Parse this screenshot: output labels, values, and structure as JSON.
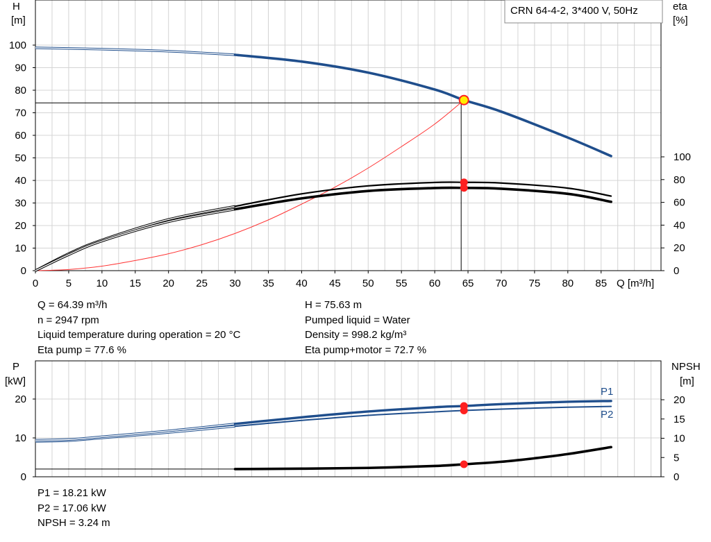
{
  "chart_data": [
    {
      "type": "line",
      "title": "CRN 64-4-2, 3*400 V, 50Hz",
      "xlabel": "Q [m³/h]",
      "ylabel_left": [
        "H",
        "[m]"
      ],
      "ylabel_right": [
        "eta",
        "[%]"
      ],
      "xlim": [
        0,
        94
      ],
      "ylim_left": [
        0,
        120
      ],
      "ylim_right": [
        0,
        100
      ],
      "x_ticks": [
        0,
        5,
        10,
        15,
        20,
        25,
        30,
        35,
        40,
        45,
        50,
        55,
        60,
        65,
        70,
        75,
        80,
        85
      ],
      "y_ticks_left": [
        0,
        10,
        20,
        30,
        40,
        50,
        60,
        70,
        80,
        90,
        100
      ],
      "y_ticks_right": [
        0,
        20,
        40,
        60,
        80,
        100
      ],
      "grid": true,
      "series": [
        {
          "key": "H",
          "axis": "left",
          "color": "#1f4e8c",
          "x": [
            0,
            10,
            20,
            30,
            40,
            50,
            60,
            64.39,
            70,
            80,
            86.5
          ],
          "y": [
            98.8,
            98.2,
            97.3,
            95.7,
            92.7,
            87.8,
            80.3,
            75.63,
            70.5,
            59.0,
            50.8
          ]
        },
        {
          "key": "eta_pump",
          "axis": "right",
          "x": [
            0,
            5,
            10,
            20,
            30,
            40,
            50,
            60,
            64.39,
            70,
            80,
            86.5
          ],
          "y": [
            0,
            15,
            27,
            45,
            56.5,
            67.5,
            74.5,
            77.5,
            77.6,
            77,
            72.5,
            65.5
          ]
        },
        {
          "key": "eta_total",
          "axis": "right",
          "x": [
            0,
            5,
            10,
            20,
            30,
            40,
            50,
            60,
            64.39,
            70,
            80,
            86.5
          ],
          "y": [
            0,
            14,
            26,
            43,
            54,
            63.5,
            70,
            72.6,
            72.7,
            72,
            67.5,
            60.5
          ]
        },
        {
          "key": "system",
          "axis": "left",
          "color": "#ff3333",
          "x": [
            0,
            5,
            10,
            15,
            20,
            25,
            30,
            35,
            40,
            45,
            50,
            55,
            60,
            64.39
          ],
          "y": [
            0,
            0.5,
            2,
            4.5,
            7.5,
            11.5,
            16.5,
            22.5,
            29.5,
            37,
            45.5,
            55,
            65,
            75.63
          ]
        }
      ],
      "operating_point": {
        "x": 64.39,
        "y": 75.63,
        "eta_pump": 77.6,
        "eta_total": 72.7
      }
    },
    {
      "type": "line",
      "ylabel_left": [
        "P",
        "[kW]"
      ],
      "ylabel_right": [
        "NPSH",
        "[m]"
      ],
      "xlim": [
        0,
        94
      ],
      "ylim_left": [
        0,
        25
      ],
      "ylim_right": [
        0,
        25
      ],
      "y_ticks_left": [
        0,
        10,
        20
      ],
      "y_ticks_right": [
        0,
        5,
        10,
        15,
        20
      ],
      "grid": true,
      "series": [
        {
          "name": "P1",
          "axis": "left",
          "color": "#1f4e8c",
          "x": [
            0,
            5,
            10,
            20,
            30,
            40,
            50,
            60,
            64.39,
            70,
            80,
            86.5
          ],
          "y": [
            9.4,
            9.6,
            10.3,
            11.8,
            13.6,
            15.3,
            16.8,
            17.9,
            18.21,
            18.7,
            19.3,
            19.5
          ]
        },
        {
          "name": "P2",
          "axis": "left",
          "color": "#1f4e8c",
          "x": [
            0,
            5,
            10,
            20,
            30,
            40,
            50,
            60,
            64.39,
            70,
            80,
            86.5
          ],
          "y": [
            9.1,
            9.3,
            10.0,
            11.4,
            13.0,
            14.5,
            15.8,
            16.7,
            17.06,
            17.4,
            17.9,
            18.1
          ]
        },
        {
          "key": "NPSH",
          "axis": "right",
          "color": "#000000",
          "x": [
            0,
            30,
            40,
            50,
            60,
            64.39,
            70,
            75,
            80,
            86.5
          ],
          "y": [
            2.0,
            2.0,
            2.1,
            2.3,
            2.8,
            3.24,
            3.9,
            4.8,
            5.9,
            7.7
          ]
        }
      ],
      "operating_point": {
        "x": 64.39,
        "P1": 18.21,
        "P2": 17.06,
        "NPSH": 3.24
      }
    }
  ],
  "info_top_left": [
    "Q = 64.39 m³/h",
    "n = 2947 rpm",
    "Liquid temperature during operation = 20 °C",
    "Eta pump = 77.6 %"
  ],
  "info_top_right": [
    "H = 75.63 m",
    "Pumped liquid = Water",
    "Density = 998.2 kg/m³",
    "Eta pump+motor = 72.7 %"
  ],
  "info_bottom": [
    "P1 = 18.21 kW",
    "P2 = 17.06 kW",
    "NPSH = 3.24 m"
  ]
}
